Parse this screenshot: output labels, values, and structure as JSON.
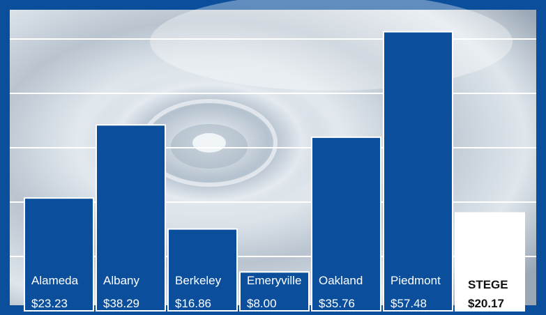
{
  "chart_data": {
    "type": "bar",
    "categories": [
      "Alameda",
      "Albany",
      "Berkeley",
      "Emeryville",
      "Oakland",
      "Piedmont",
      "STEGE"
    ],
    "value_labels": [
      "$23.23",
      "$38.29",
      "$16.86",
      "$8.00",
      "$35.76",
      "$57.48",
      "$20.17"
    ],
    "values": [
      23.23,
      38.29,
      16.86,
      8.0,
      35.76,
      57.48,
      20.17
    ],
    "highlight_index": 6,
    "ylim": [
      0,
      60
    ],
    "y_gridlines": [
      10,
      20,
      30,
      40,
      50,
      60
    ],
    "grid": true,
    "title": "",
    "xlabel": "",
    "ylabel": "",
    "colors": {
      "frame": "#0b4f9c",
      "bar": "#0b4f9c",
      "highlight_bar": "#ffffff",
      "bar_text": "#ffffff",
      "highlight_text": "#111111",
      "gridline": "#ffffff",
      "background_light": "#e4ebf1",
      "background_dark": "#8d9aa8"
    }
  }
}
